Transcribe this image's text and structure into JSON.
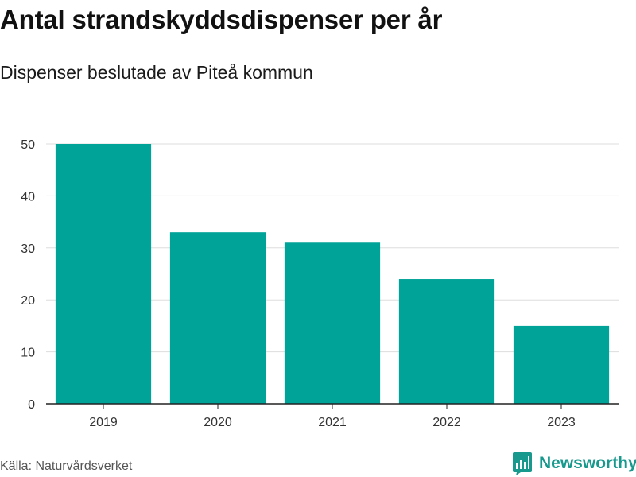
{
  "title": "Antal strandskyddsdispenser per år",
  "subtitle": "Dispenser beslutade av Piteå kommun",
  "source": "Källa: Naturvårdsverket",
  "brand": {
    "name": "Newsworthy",
    "color": "#17998e"
  },
  "colors": {
    "bar": "#00a398",
    "grid": "#dddddd",
    "axis": "#222222"
  },
  "chart_data": {
    "type": "bar",
    "title": "Antal strandskyddsdispenser per år",
    "xlabel": "",
    "ylabel": "",
    "categories": [
      "2019",
      "2020",
      "2021",
      "2022",
      "2023"
    ],
    "values": [
      50,
      33,
      31,
      24,
      15
    ],
    "ylim": [
      0,
      50
    ],
    "yticks": [
      0,
      10,
      20,
      30,
      40,
      50
    ],
    "grid": true,
    "legend": "none"
  }
}
